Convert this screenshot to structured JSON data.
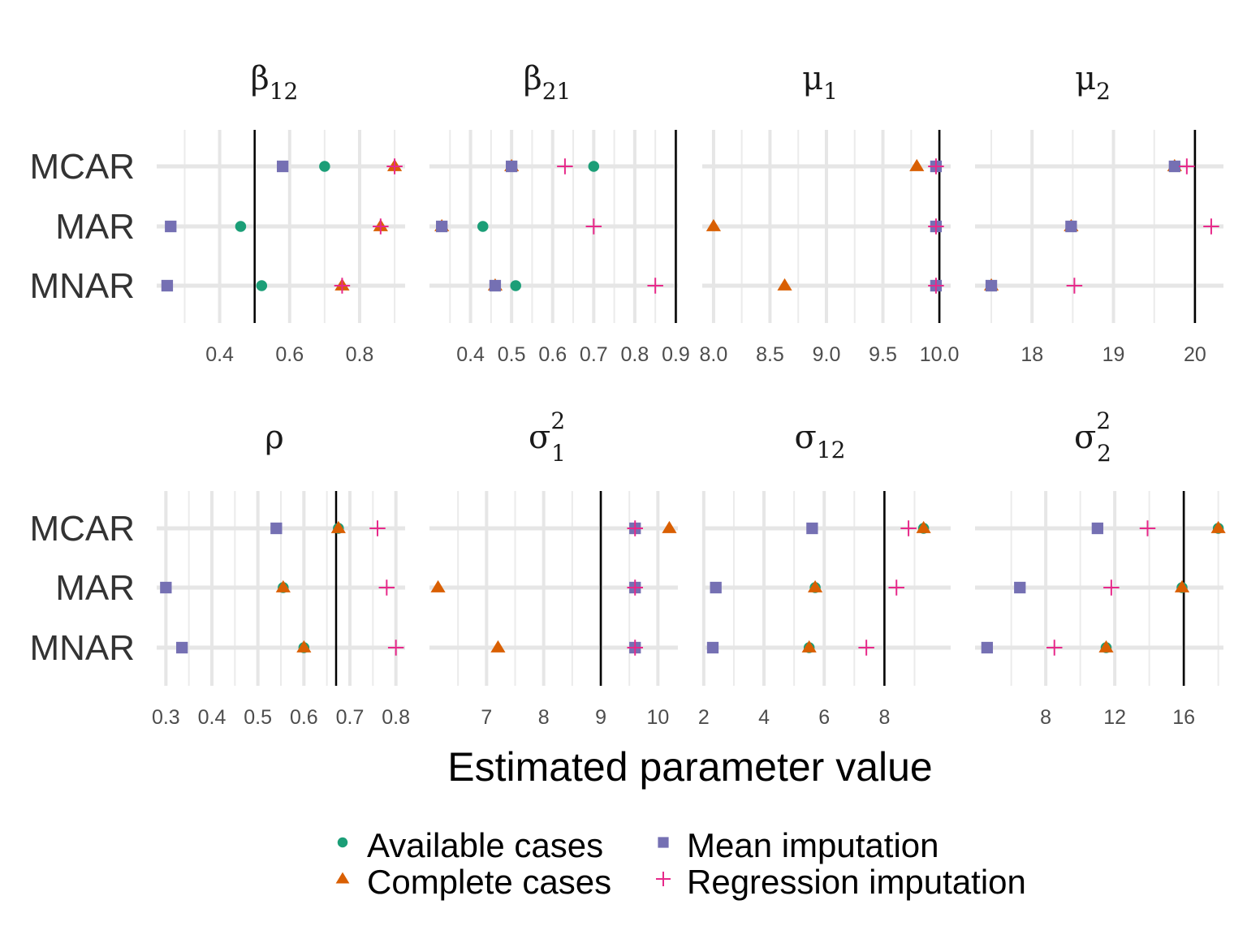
{
  "chart_data": {
    "type": "scatter",
    "layout": "faceted dot plot",
    "xlabel": "Estimated parameter value",
    "categories": [
      "MCAR",
      "MAR",
      "MNAR"
    ],
    "legend_position": "bottom",
    "grid": true,
    "series": [
      {
        "key": "available",
        "name": "Available cases",
        "color": "#1b9e77",
        "shape": "circle"
      },
      {
        "key": "complete",
        "name": "Complete cases",
        "color": "#d95f02",
        "shape": "triangle"
      },
      {
        "key": "mean",
        "name": "Mean imputation",
        "color": "#7570b3",
        "shape": "square"
      },
      {
        "key": "regression",
        "name": "Regression imputation",
        "color": "#e7298a",
        "shape": "plus"
      }
    ],
    "panels": [
      {
        "title": "β",
        "sub": "12",
        "sup": "",
        "xlim": [
          0.22,
          0.93
        ],
        "ticks": [
          0.4,
          0.6,
          0.8
        ],
        "tick_labels": [
          "0.4",
          "0.6",
          "0.8"
        ],
        "true_value": 0.5,
        "values": {
          "MCAR": {
            "available": 0.7,
            "complete": 0.9,
            "mean": 0.58,
            "regression": 0.9
          },
          "MAR": {
            "available": 0.46,
            "complete": 0.86,
            "mean": 0.26,
            "regression": 0.86
          },
          "MNAR": {
            "available": 0.52,
            "complete": 0.75,
            "mean": 0.25,
            "regression": 0.75
          }
        }
      },
      {
        "title": "β",
        "sub": "21",
        "sup": "",
        "xlim": [
          0.3,
          0.905
        ],
        "ticks": [
          0.4,
          0.5,
          0.6,
          0.7,
          0.8,
          0.9
        ],
        "tick_labels": [
          "0.4",
          "0.5",
          "0.6",
          "0.7",
          "0.8",
          "0.9"
        ],
        "true_value": 0.9,
        "values": {
          "MCAR": {
            "available": 0.7,
            "complete": 0.5,
            "mean": 0.5,
            "regression": 0.63
          },
          "MAR": {
            "available": 0.43,
            "complete": 0.33,
            "mean": 0.33,
            "regression": 0.7
          },
          "MNAR": {
            "available": 0.51,
            "complete": 0.46,
            "mean": 0.46,
            "regression": 0.85
          }
        }
      },
      {
        "title": "μ",
        "sub": "1",
        "sup": "",
        "xlim": [
          7.9,
          10.1
        ],
        "ticks": [
          8.0,
          8.5,
          9.0,
          9.5,
          10.0
        ],
        "tick_labels": [
          "8.0",
          "8.5",
          "9.0",
          "9.5",
          "10.0"
        ],
        "true_value": 10.0,
        "values": {
          "MCAR": {
            "available": 9.97,
            "complete": 9.8,
            "mean": 9.97,
            "regression": 9.97
          },
          "MAR": {
            "available": 9.97,
            "complete": 8.0,
            "mean": 9.97,
            "regression": 9.97
          },
          "MNAR": {
            "available": 9.97,
            "complete": 8.63,
            "mean": 9.97,
            "regression": 9.97
          }
        }
      },
      {
        "title": "μ",
        "sub": "2",
        "sup": "",
        "xlim": [
          17.3,
          20.35
        ],
        "ticks": [
          18,
          19,
          20
        ],
        "tick_labels": [
          "18",
          "19",
          "20"
        ],
        "true_value": 20,
        "values": {
          "MCAR": {
            "available": 19.75,
            "complete": 19.75,
            "mean": 19.75,
            "regression": 19.9
          },
          "MAR": {
            "available": 18.48,
            "complete": 18.48,
            "mean": 18.48,
            "regression": 20.2
          },
          "MNAR": {
            "available": 17.5,
            "complete": 17.5,
            "mean": 17.5,
            "regression": 18.52
          }
        }
      },
      {
        "title": "ρ",
        "sub": "",
        "sup": "",
        "xlim": [
          0.28,
          0.82
        ],
        "ticks": [
          0.3,
          0.4,
          0.5,
          0.6,
          0.7,
          0.8
        ],
        "tick_labels": [
          "0.3",
          "0.4",
          "0.5",
          "0.6",
          "0.7",
          "0.8"
        ],
        "true_value": 0.67,
        "values": {
          "MCAR": {
            "available": 0.675,
            "complete": 0.675,
            "mean": 0.54,
            "regression": 0.76
          },
          "MAR": {
            "available": 0.555,
            "complete": 0.555,
            "mean": 0.3,
            "regression": 0.78
          },
          "MNAR": {
            "available": 0.6,
            "complete": 0.6,
            "mean": 0.335,
            "regression": 0.8
          }
        }
      },
      {
        "title": "σ",
        "sub": "1",
        "sup": "2",
        "xlim": [
          6.0,
          10.35
        ],
        "ticks": [
          7,
          8,
          9,
          10
        ],
        "tick_labels": [
          "7",
          "8",
          "9",
          "10"
        ],
        "true_value": 9,
        "values": {
          "MCAR": {
            "available": 9.6,
            "complete": 10.2,
            "mean": 9.6,
            "regression": 9.6
          },
          "MAR": {
            "available": 9.6,
            "complete": 6.15,
            "mean": 9.6,
            "regression": 9.6
          },
          "MNAR": {
            "available": 9.6,
            "complete": 7.2,
            "mean": 9.6,
            "regression": 9.6
          }
        }
      },
      {
        "title": "σ",
        "sub": "12",
        "sup": "",
        "xlim": [
          1.95,
          10.2
        ],
        "ticks": [
          2,
          4,
          6,
          8
        ],
        "tick_labels": [
          "2",
          "4",
          "6",
          "8"
        ],
        "true_value": 8,
        "values": {
          "MCAR": {
            "available": 9.3,
            "complete": 9.3,
            "mean": 5.6,
            "regression": 8.8
          },
          "MAR": {
            "available": 5.7,
            "complete": 5.7,
            "mean": 2.4,
            "regression": 8.4
          },
          "MNAR": {
            "available": 5.5,
            "complete": 5.5,
            "mean": 2.3,
            "regression": 7.4
          }
        }
      },
      {
        "title": "σ",
        "sub": "2",
        "sup": "2",
        "xlim": [
          3.9,
          18.3
        ],
        "ticks": [
          8,
          12,
          16
        ],
        "tick_labels": [
          "8",
          "12",
          "16"
        ],
        "true_value": 16,
        "values": {
          "MCAR": {
            "available": 18.0,
            "complete": 18.0,
            "mean": 11.0,
            "regression": 13.9
          },
          "MAR": {
            "available": 15.9,
            "complete": 15.9,
            "mean": 6.5,
            "regression": 11.8
          },
          "MNAR": {
            "available": 11.5,
            "complete": 11.5,
            "mean": 4.6,
            "regression": 8.5
          }
        }
      }
    ]
  }
}
